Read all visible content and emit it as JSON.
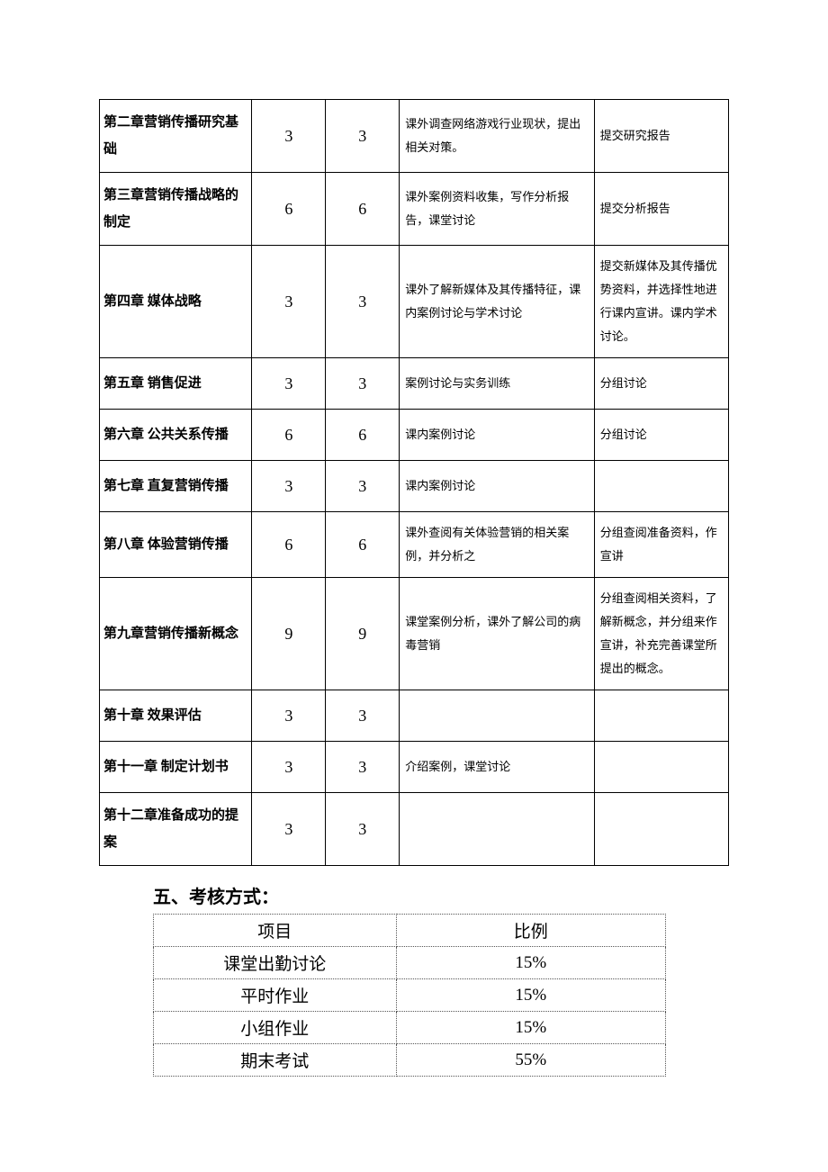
{
  "chapters": [
    {
      "title": "第二章营销传播研究基础",
      "h1": "3",
      "h2": "3",
      "activity": "课外调查网络游戏行业现状，提出相关对策。",
      "deliver": "提交研究报告"
    },
    {
      "title": "第三章营销传播战略的制定",
      "h1": "6",
      "h2": "6",
      "activity": "课外案例资料收集，写作分析报告，课堂讨论",
      "deliver": "提交分析报告"
    },
    {
      "title": "第四章 媒体战略",
      "h1": "3",
      "h2": "3",
      "activity": "课外了解新媒体及其传播特征，课内案例讨论与学术讨论",
      "deliver": "提交新媒体及其传播优势资料，并选择性地进行课内宣讲。课内学术讨论。"
    },
    {
      "title": "第五章 销售促进",
      "h1": "3",
      "h2": "3",
      "activity": "案例讨论与实务训练",
      "deliver": "分组讨论"
    },
    {
      "title": "第六章  公共关系传播",
      "h1": "6",
      "h2": "6",
      "activity": "课内案例讨论",
      "deliver": "分组讨论"
    },
    {
      "title": "第七章 直复营销传播",
      "h1": "3",
      "h2": "3",
      "activity": "课内案例讨论",
      "deliver": ""
    },
    {
      "title": "第八章 体验营销传播",
      "h1": "6",
      "h2": "6",
      "activity": "课外查阅有关体验营销的相关案例，并分析之",
      "deliver": "分组查阅准备资料，作宣讲"
    },
    {
      "title": "第九章营销传播新概念",
      "h1": "9",
      "h2": "9",
      "activity": "课堂案例分析，课外了解公司的病毒营销",
      "deliver": "分组查阅相关资料，了解新概念，并分组来作宣讲，补充完善课堂所提出的概念。"
    },
    {
      "title": "第十章 效果评估",
      "h1": "3",
      "h2": "3",
      "activity": "",
      "deliver": ""
    },
    {
      "title": "第十一章 制定计划书",
      "h1": "3",
      "h2": "3",
      "activity": "介绍案例，课堂讨论",
      "deliver": ""
    },
    {
      "title": "第十二章准备成功的提案",
      "h1": "3",
      "h2": "3",
      "activity": "",
      "deliver": ""
    }
  ],
  "section_title": "五、考核方式：",
  "assess_header": {
    "c1": "项目",
    "c2": "比例"
  },
  "assess_rows": [
    {
      "c1": "课堂出勤讨论",
      "c2": "15%"
    },
    {
      "c1": "平时作业",
      "c2": "15%"
    },
    {
      "c1": "小组作业",
      "c2": "15%"
    },
    {
      "c1": "期末考试",
      "c2": "55%"
    }
  ]
}
